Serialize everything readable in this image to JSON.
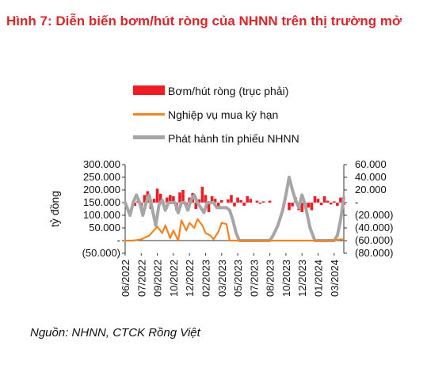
{
  "figure": {
    "title": "Hình 7: Diễn biến bơm/hút ròng của NHNN trên thị trường mở",
    "source": "Nguồn: NHNN, CTCK Rồng Việt"
  },
  "colors": {
    "title": "#d9262b",
    "net": "#ee1c25",
    "omo": "#f58220",
    "bills": "#a6a6a6"
  },
  "chart_data": {
    "type": "line",
    "ylabel": "tỷ đồng",
    "left_axis": {
      "ylim": [
        -50000,
        300000
      ],
      "ticks": [
        "300.000",
        "250.000",
        "200.000",
        "150.000",
        "100.000",
        "50.000",
        "-",
        "(50.000)"
      ]
    },
    "right_axis": {
      "ylim": [
        -80000,
        60000
      ],
      "ticks": [
        "60.000",
        "40.000",
        "20.000",
        "-",
        "(20.000)",
        "(40.000)",
        "(60.000)",
        "(80.000)"
      ]
    },
    "x_ticks": [
      "06/2022",
      "07/2022",
      "09/2022",
      "10/2022",
      "12/2022",
      "02/2023",
      "03/2023",
      "05/2023",
      "07/2023",
      "08/2023",
      "10/2023",
      "12/2023",
      "01/2024",
      "03/2024"
    ],
    "legend": [
      "Bơm/hút ròng (trục phải)",
      "Nghiệp vụ mua kỳ hạn",
      "Phát hành tín phiếu NHNN"
    ],
    "grid": false,
    "series": [
      {
        "name": "Bơm/hút ròng (trục phải)",
        "type": "bar",
        "axis": "right",
        "x": [
          0.0,
          0.2,
          0.4,
          0.6,
          0.8,
          1.0,
          1.2,
          1.4,
          1.6,
          1.8,
          2.0,
          2.2,
          2.4,
          2.6,
          2.8,
          3.0,
          3.2,
          3.4,
          3.6,
          3.8,
          4.0,
          4.2,
          4.4,
          4.6,
          4.8,
          5.0,
          5.2,
          5.4,
          5.6,
          5.8,
          6.0,
          6.2,
          6.4,
          6.6,
          6.8,
          7.0,
          7.2,
          7.4,
          7.6,
          7.8,
          8.0,
          8.2,
          8.4,
          8.6,
          8.8,
          9.0,
          9.2,
          9.4,
          9.6,
          9.8,
          10.0,
          10.2,
          10.4,
          10.6,
          10.8,
          11.0,
          11.2,
          11.4,
          11.6,
          11.8,
          12.0,
          12.2,
          12.4,
          12.6,
          12.8,
          13.0,
          13.2,
          13.4,
          13.6
        ],
        "values": [
          0,
          0,
          0,
          -5000,
          3000,
          -8000,
          12000,
          18000,
          -10000,
          6000,
          22000,
          14000,
          -6000,
          8000,
          12000,
          10000,
          -12000,
          16000,
          20000,
          -4000,
          8000,
          15000,
          -10000,
          5000,
          25000,
          12000,
          -15000,
          10000,
          6000,
          -8000,
          4000,
          0,
          5000,
          12000,
          -6000,
          8000,
          4000,
          -5000,
          10000,
          6000,
          0,
          3000,
          -2000,
          2000,
          0,
          3000,
          0,
          0,
          0,
          0,
          0,
          -12000,
          -6000,
          8000,
          -12000,
          -15000,
          -6000,
          -8000,
          -12000,
          10000,
          6000,
          -4000,
          10000,
          3000,
          -3000,
          2000,
          -5000,
          8000,
          -4000
        ]
      },
      {
        "name": "Nghiệp vụ mua kỳ hạn",
        "type": "line",
        "axis": "left",
        "x": [
          0.0,
          0.5,
          1.0,
          1.5,
          2.0,
          2.3,
          2.5,
          2.8,
          3.0,
          3.3,
          3.5,
          3.8,
          4.0,
          4.3,
          4.5,
          4.8,
          5.0,
          5.3,
          5.5,
          5.8,
          6.0,
          6.3,
          6.5,
          6.8,
          7.0,
          7.5,
          8.0,
          8.5,
          9.0,
          9.5,
          10.0,
          10.5,
          11.0,
          11.5,
          12.0,
          12.5,
          13.0,
          13.5,
          13.6
        ],
        "values": [
          0,
          0,
          5000,
          20000,
          55000,
          30000,
          60000,
          10000,
          40000,
          0,
          80000,
          40000,
          70000,
          50000,
          85000,
          60000,
          30000,
          20000,
          5000,
          35000,
          70000,
          65000,
          0,
          0,
          0,
          0,
          0,
          0,
          0,
          0,
          0,
          0,
          0,
          0,
          0,
          0,
          2000,
          5000,
          3000
        ]
      },
      {
        "name": "Phát hành tín phiếu NHNN",
        "type": "line",
        "axis": "left",
        "x": [
          0.0,
          0.3,
          0.5,
          0.7,
          0.9,
          1.1,
          1.3,
          1.5,
          1.7,
          1.9,
          2.1,
          2.3,
          2.5,
          2.7,
          2.9,
          3.1,
          3.3,
          3.5,
          3.7,
          3.9,
          4.1,
          4.3,
          4.5,
          4.7,
          4.9,
          5.1,
          5.3,
          5.5,
          5.7,
          5.9,
          6.1,
          6.3,
          6.5,
          6.7,
          6.9,
          7.1,
          7.5,
          8.0,
          8.5,
          9.0,
          9.2,
          9.5,
          9.8,
          10.0,
          10.2,
          10.4,
          10.6,
          10.8,
          11.0,
          11.2,
          11.5,
          11.8,
          12.0,
          12.5,
          13.0,
          13.2,
          13.4,
          13.6
        ],
        "values": [
          150000,
          100000,
          150000,
          180000,
          150000,
          100000,
          150000,
          180000,
          120000,
          60000,
          140000,
          160000,
          120000,
          150000,
          150000,
          150000,
          110000,
          150000,
          150000,
          120000,
          160000,
          180000,
          150000,
          130000,
          110000,
          150000,
          150000,
          150000,
          130000,
          130000,
          130000,
          130000,
          120000,
          80000,
          30000,
          0,
          0,
          0,
          0,
          0,
          20000,
          60000,
          120000,
          180000,
          250000,
          200000,
          160000,
          130000,
          180000,
          140000,
          50000,
          0,
          0,
          0,
          0,
          20000,
          80000,
          170000
        ]
      }
    ]
  }
}
